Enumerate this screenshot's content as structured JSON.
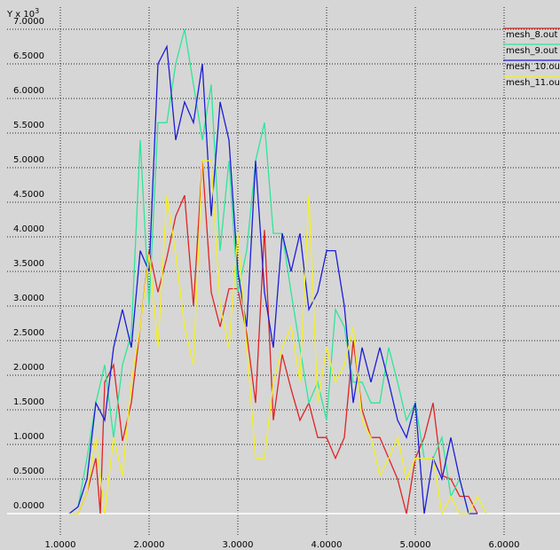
{
  "chart_data": {
    "type": "line",
    "y_label": "Y x 10",
    "y_label_exponent": "3",
    "xlim": [
      0.4,
      6.63
    ],
    "ylim": [
      -0.32,
      7.32
    ],
    "xticks": [
      {
        "value": 1,
        "label": "1.0000"
      },
      {
        "value": 2,
        "label": "2.0000"
      },
      {
        "value": 3,
        "label": "3.0000"
      },
      {
        "value": 4,
        "label": "4.0000"
      },
      {
        "value": 5,
        "label": "5.0000"
      },
      {
        "value": 6,
        "label": "6.0000"
      }
    ],
    "yticks": [
      {
        "value": 0,
        "label": "0.0000"
      },
      {
        "value": 0.5,
        "label": "0.5000"
      },
      {
        "value": 1,
        "label": "1.0000"
      },
      {
        "value": 1.5,
        "label": "1.5000"
      },
      {
        "value": 2,
        "label": "2.0000"
      },
      {
        "value": 2.5,
        "label": "2.5000"
      },
      {
        "value": 3,
        "label": "3.0000"
      },
      {
        "value": 3.5,
        "label": "3.5000"
      },
      {
        "value": 4,
        "label": "4.0000"
      },
      {
        "value": 4.5,
        "label": "4.5000"
      },
      {
        "value": 5,
        "label": "5.0000"
      },
      {
        "value": 5.5,
        "label": "5.5000"
      },
      {
        "value": 6,
        "label": "6.0000"
      },
      {
        "value": 6.5,
        "label": "6.5000"
      },
      {
        "value": 7,
        "label": "7.0000"
      }
    ],
    "grid": true,
    "series": [
      {
        "name": "mesh_8.out",
        "color": "#e02424",
        "x": [
          1.2,
          1.3,
          1.4,
          1.45,
          1.5,
          1.6,
          1.7,
          1.8,
          1.9,
          2.0,
          2.1,
          2.2,
          2.3,
          2.4,
          2.5,
          2.6,
          2.7,
          2.8,
          2.9,
          3.0,
          3.1,
          3.2,
          3.3,
          3.4,
          3.5,
          3.6,
          3.7,
          3.8,
          3.9,
          4.0,
          4.1,
          4.2,
          4.3,
          4.4,
          4.5,
          4.6,
          4.7,
          4.8,
          4.9,
          5.0,
          5.1,
          5.2,
          5.3,
          5.4,
          5.5,
          5.6,
          5.7
        ],
        "values": [
          0,
          0.3,
          0.8,
          0,
          1.9,
          2.15,
          1.05,
          1.6,
          2.7,
          3.8,
          3.2,
          3.7,
          4.3,
          4.6,
          3.0,
          5.1,
          3.2,
          2.7,
          3.25,
          3.25,
          2.6,
          1.6,
          4.1,
          1.35,
          2.3,
          1.8,
          1.35,
          1.6,
          1.1,
          1.1,
          0.8,
          1.1,
          2.5,
          1.5,
          1.1,
          1.1,
          0.8,
          0.5,
          0,
          0.8,
          1.1,
          1.6,
          0.55,
          0.5,
          0.25,
          0.25,
          0
        ]
      },
      {
        "name": "mesh_9.out",
        "color": "#2ee69a",
        "x": [
          1.1,
          1.2,
          1.3,
          1.4,
          1.5,
          1.6,
          1.7,
          1.8,
          1.9,
          2.0,
          2.1,
          2.2,
          2.3,
          2.4,
          2.5,
          2.6,
          2.7,
          2.8,
          2.9,
          3.0,
          3.1,
          3.2,
          3.3,
          3.4,
          3.5,
          3.6,
          3.7,
          3.8,
          3.9,
          4.0,
          4.1,
          4.2,
          4.3,
          4.4,
          4.5,
          4.6,
          4.7,
          4.8,
          4.9,
          5.0,
          5.1,
          5.2,
          5.3,
          5.4,
          5.5,
          5.6
        ],
        "values": [
          0,
          0.1,
          0.8,
          1.6,
          2.15,
          1.1,
          2.15,
          2.6,
          5.4,
          3.0,
          5.65,
          5.65,
          6.5,
          7.0,
          6.2,
          5.4,
          6.2,
          3.8,
          5.1,
          3.2,
          3.8,
          5.1,
          5.65,
          4.05,
          4.05,
          3.2,
          2.4,
          1.6,
          1.9,
          1.35,
          2.95,
          2.7,
          1.9,
          1.9,
          1.6,
          1.6,
          2.4,
          1.9,
          1.35,
          1.6,
          0.8,
          0.8,
          1.1,
          0.25,
          0.5,
          0
        ]
      },
      {
        "name": "mesh_10.ou",
        "color": "#1c1cd8",
        "x": [
          1.1,
          1.2,
          1.3,
          1.4,
          1.5,
          1.6,
          1.7,
          1.8,
          1.9,
          2.0,
          2.1,
          2.2,
          2.3,
          2.4,
          2.5,
          2.6,
          2.7,
          2.8,
          2.9,
          3.0,
          3.1,
          3.2,
          3.3,
          3.4,
          3.5,
          3.6,
          3.7,
          3.8,
          3.9,
          4.0,
          4.1,
          4.2,
          4.3,
          4.4,
          4.5,
          4.6,
          4.7,
          4.8,
          4.9,
          5.0,
          5.1,
          5.2,
          5.3,
          5.4,
          5.5,
          5.6,
          5.7
        ],
        "values": [
          0,
          0.1,
          0.5,
          1.6,
          1.35,
          2.4,
          2.95,
          2.4,
          3.8,
          3.5,
          6.5,
          6.75,
          5.4,
          5.95,
          5.65,
          6.5,
          4.3,
          5.95,
          5.4,
          3.5,
          2.7,
          5.1,
          3.2,
          2.4,
          4.05,
          3.5,
          4.05,
          2.95,
          3.2,
          3.8,
          3.8,
          3.0,
          1.6,
          2.4,
          1.9,
          2.4,
          1.9,
          1.35,
          1.1,
          1.6,
          0,
          0.8,
          0.5,
          1.1,
          0.5,
          0,
          0
        ]
      },
      {
        "name": "mesh_11.ou",
        "color": "#f2f024",
        "x": [
          1.1,
          1.2,
          1.3,
          1.4,
          1.5,
          1.6,
          1.7,
          1.8,
          1.9,
          2.0,
          2.1,
          2.2,
          2.3,
          2.4,
          2.5,
          2.6,
          2.7,
          2.8,
          2.9,
          3.0,
          3.1,
          3.2,
          3.3,
          3.4,
          3.5,
          3.6,
          3.7,
          3.8,
          3.9,
          4.0,
          4.1,
          4.2,
          4.3,
          4.4,
          4.5,
          4.6,
          4.7,
          4.8,
          4.9,
          5.0,
          5.1,
          5.2,
          5.3,
          5.4,
          5.5,
          5.6,
          5.7,
          5.8
        ],
        "values": [
          0,
          0,
          0.3,
          1.1,
          0,
          1.1,
          0.55,
          1.9,
          2.7,
          3.75,
          2.4,
          4.6,
          3.75,
          2.7,
          2.15,
          5.1,
          5.1,
          3.0,
          2.4,
          4.05,
          2.4,
          0.8,
          0.8,
          1.9,
          2.4,
          2.7,
          1.9,
          4.6,
          1.6,
          2.4,
          1.9,
          2.15,
          2.7,
          1.35,
          1.1,
          0.55,
          0.8,
          1.1,
          0.5,
          0.8,
          0.8,
          0.8,
          0,
          0.25,
          0,
          0,
          0.25,
          0
        ]
      }
    ]
  }
}
